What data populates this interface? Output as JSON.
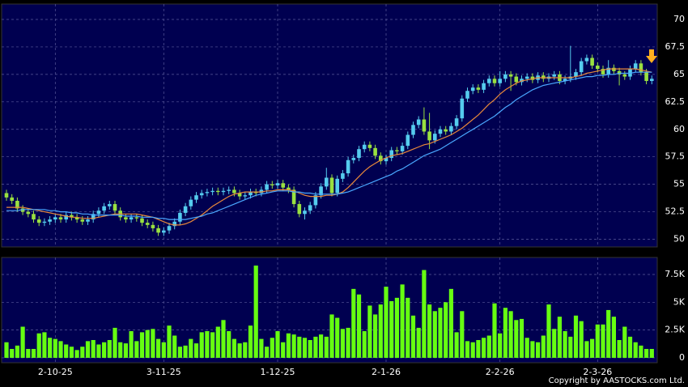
{
  "chart_data": {
    "type": "candlestick",
    "categories": [
      null,
      null,
      null,
      null,
      null,
      null,
      null,
      null,
      null,
      "2-10-25",
      null,
      null,
      null,
      null,
      null,
      null,
      null,
      null,
      null,
      null,
      null,
      null,
      null,
      null,
      null,
      null,
      null,
      null,
      null,
      "3-11-25",
      null,
      null,
      null,
      null,
      null,
      null,
      null,
      null,
      null,
      null,
      null,
      null,
      null,
      null,
      null,
      null,
      null,
      null,
      null,
      null,
      "1-12-25",
      null,
      null,
      null,
      null,
      null,
      null,
      null,
      null,
      null,
      null,
      null,
      null,
      null,
      null,
      null,
      null,
      null,
      null,
      null,
      "2-1-26",
      null,
      null,
      null,
      null,
      null,
      null,
      null,
      null,
      null,
      null,
      null,
      null,
      null,
      null,
      null,
      null,
      null,
      null,
      null,
      null,
      "2-2-26",
      null,
      null,
      null,
      null,
      null,
      null,
      null,
      null,
      null,
      null,
      null,
      null,
      null,
      null,
      null,
      null,
      null,
      "2-3-26",
      null,
      null,
      null,
      null,
      null,
      null,
      null,
      null,
      null,
      null
    ],
    "open": [
      54.2,
      53.8,
      53.5,
      52.8,
      52.5,
      52.3,
      51.8,
      51.5,
      51.6,
      51.8,
      52.0,
      51.8,
      52.2,
      52.0,
      51.8,
      51.6,
      51.8,
      52.3,
      52.6,
      53.0,
      53.2,
      52.6,
      52.0,
      51.8,
      52.0,
      51.9,
      51.5,
      51.3,
      51.0,
      50.6,
      50.8,
      51.2,
      51.6,
      52.4,
      53.0,
      53.6,
      54.0,
      54.2,
      54.3,
      54.4,
      54.3,
      54.4,
      54.5,
      54.2,
      53.9,
      54.0,
      54.3,
      54.2,
      54.5,
      55.0,
      54.9,
      55.1,
      54.7,
      54.5,
      53.2,
      52.3,
      52.6,
      53.1,
      54.0,
      54.8,
      55.6,
      54.2,
      55.5,
      56.0,
      57.2,
      57.4,
      58.2,
      58.6,
      58.3,
      57.6,
      57.1,
      57.4,
      58.1,
      58.0,
      58.5,
      59.5,
      60.4,
      60.9,
      59.8,
      59.0,
      59.6,
      60.0,
      59.8,
      60.3,
      61.0,
      62.8,
      63.5,
      63.8,
      63.6,
      64.2,
      64.6,
      64.2,
      64.6,
      65.0,
      64.8,
      64.3,
      64.6,
      64.8,
      64.5,
      64.9,
      64.6,
      64.8,
      65.0,
      64.4,
      64.6,
      64.8,
      65.2,
      66.2,
      66.5,
      65.8,
      65.5,
      65.0,
      65.6,
      65.3,
      65.0,
      64.8,
      65.5,
      66.0,
      65.2,
      64.4
    ],
    "high": [
      54.5,
      54.1,
      53.8,
      53.1,
      52.8,
      52.6,
      52.1,
      51.9,
      52.1,
      52.3,
      52.3,
      52.5,
      52.5,
      52.3,
      52.1,
      52.1,
      52.6,
      52.9,
      53.3,
      53.5,
      53.5,
      52.9,
      52.3,
      52.3,
      52.3,
      52.2,
      51.8,
      51.6,
      51.3,
      51.1,
      51.5,
      51.9,
      52.7,
      53.3,
      53.9,
      54.3,
      54.5,
      54.6,
      54.7,
      54.7,
      54.7,
      54.8,
      54.8,
      54.5,
      54.3,
      54.6,
      54.6,
      54.8,
      55.3,
      55.3,
      55.4,
      55.4,
      55.0,
      54.8,
      53.5,
      52.9,
      53.4,
      54.3,
      55.1,
      56.5,
      55.9,
      55.8,
      56.3,
      57.5,
      57.7,
      58.5,
      58.9,
      58.9,
      58.6,
      57.9,
      57.7,
      58.4,
      58.4,
      58.8,
      59.8,
      60.7,
      61.2,
      62.0,
      61.5,
      59.9,
      60.3,
      60.3,
      60.6,
      61.3,
      63.1,
      63.8,
      64.1,
      64.1,
      64.5,
      64.9,
      64.9,
      65.3,
      65.3,
      65.3,
      65.1,
      64.9,
      65.1,
      65.1,
      65.2,
      65.2,
      65.1,
      65.3,
      65.3,
      64.9,
      67.6,
      65.5,
      66.5,
      66.8,
      66.8,
      66.1,
      65.8,
      66.3,
      65.9,
      65.6,
      65.3,
      65.8,
      66.3,
      66.3,
      65.5,
      64.9
    ],
    "low": [
      53.5,
      53.2,
      52.5,
      52.2,
      52.0,
      51.5,
      51.2,
      51.2,
      51.3,
      51.5,
      51.5,
      51.5,
      51.7,
      51.5,
      51.3,
      51.3,
      51.5,
      52.0,
      52.3,
      52.7,
      52.3,
      51.7,
      51.5,
      51.5,
      51.6,
      51.2,
      51.0,
      50.7,
      50.3,
      50.3,
      50.5,
      50.9,
      51.3,
      52.1,
      52.7,
      53.3,
      53.7,
      53.9,
      54.0,
      54.0,
      54.0,
      54.1,
      53.9,
      53.6,
      53.6,
      53.7,
      53.9,
      53.9,
      54.2,
      54.6,
      54.6,
      54.4,
      54.2,
      52.9,
      52.0,
      51.8,
      52.3,
      52.8,
      53.7,
      54.5,
      53.9,
      53.9,
      55.2,
      55.7,
      56.9,
      57.1,
      57.9,
      58.0,
      57.3,
      56.8,
      56.8,
      57.1,
      57.7,
      57.7,
      58.2,
      59.2,
      60.1,
      59.5,
      58.2,
      58.7,
      59.3,
      59.5,
      59.5,
      60.0,
      60.7,
      62.5,
      63.2,
      63.3,
      63.3,
      63.9,
      63.9,
      63.9,
      64.3,
      63.5,
      64.0,
      64.0,
      64.3,
      64.2,
      64.2,
      64.3,
      64.3,
      64.5,
      64.1,
      64.1,
      64.3,
      64.5,
      64.9,
      65.9,
      65.5,
      65.2,
      64.7,
      64.7,
      65.0,
      64.0,
      64.5,
      64.5,
      65.2,
      64.9,
      64.1,
      64.1
    ],
    "close": [
      53.8,
      53.5,
      52.8,
      52.5,
      52.3,
      51.8,
      51.5,
      51.6,
      51.8,
      52.0,
      51.8,
      52.2,
      52.0,
      51.8,
      51.6,
      51.8,
      52.3,
      52.6,
      53.0,
      53.2,
      52.6,
      52.0,
      51.8,
      52.0,
      51.9,
      51.5,
      51.3,
      51.0,
      50.6,
      50.8,
      51.2,
      51.6,
      52.4,
      53.0,
      53.6,
      54.0,
      54.2,
      54.3,
      54.4,
      54.3,
      54.4,
      54.5,
      54.2,
      53.9,
      54.0,
      54.3,
      54.2,
      54.5,
      55.0,
      54.9,
      55.1,
      54.7,
      54.5,
      53.2,
      52.3,
      52.6,
      53.1,
      54.0,
      54.8,
      55.6,
      54.2,
      55.5,
      56.0,
      57.2,
      57.4,
      58.2,
      58.6,
      58.3,
      57.6,
      57.1,
      57.4,
      58.1,
      58.0,
      58.5,
      59.5,
      60.4,
      60.9,
      59.8,
      59.0,
      59.6,
      60.0,
      59.8,
      60.3,
      61.0,
      62.8,
      63.5,
      63.8,
      63.6,
      64.2,
      64.6,
      64.2,
      64.6,
      65.0,
      64.8,
      64.3,
      64.6,
      64.8,
      64.5,
      64.9,
      64.6,
      64.8,
      65.0,
      64.4,
      64.6,
      64.8,
      65.2,
      66.2,
      66.5,
      65.8,
      65.5,
      65.0,
      65.6,
      65.3,
      65.0,
      64.8,
      65.5,
      66.0,
      65.2,
      64.4,
      64.6
    ],
    "up_color": "#55ccee",
    "down_color": "#99e040",
    "ma_lines": [
      {
        "color": "#e8883a",
        "values": [
          52.9,
          52.9,
          52.9,
          52.9,
          52.8,
          52.7,
          52.6,
          52.5,
          52.4,
          52.3,
          52.2,
          52.1,
          52.0,
          52.0,
          51.9,
          51.9,
          51.9,
          52.0,
          52.1,
          52.2,
          52.3,
          52.3,
          52.3,
          52.3,
          52.3,
          52.2,
          52.1,
          52.0,
          51.8,
          51.6,
          51.4,
          51.3,
          51.3,
          51.4,
          51.6,
          51.9,
          52.2,
          52.6,
          53.0,
          53.3,
          53.6,
          53.9,
          54.1,
          54.2,
          54.3,
          54.3,
          54.3,
          54.3,
          54.4,
          54.4,
          54.5,
          54.5,
          54.5,
          54.4,
          54.2,
          54.0,
          53.9,
          53.9,
          53.9,
          54.0,
          54.0,
          54.1,
          54.3,
          54.7,
          55.2,
          55.7,
          56.2,
          56.6,
          56.9,
          57.2,
          57.4,
          57.6,
          57.7,
          57.8,
          58.0,
          58.2,
          58.4,
          58.6,
          58.7,
          58.9,
          59.1,
          59.3,
          59.5,
          59.8,
          60.1,
          60.5,
          60.9,
          61.3,
          61.8,
          62.3,
          62.7,
          63.2,
          63.6,
          63.9,
          64.2,
          64.4,
          64.5,
          64.6,
          64.7,
          64.7,
          64.7,
          64.7,
          64.7,
          64.7,
          64.7,
          64.8,
          64.9,
          65.1,
          65.2,
          65.3,
          65.4,
          65.5,
          65.5,
          65.5,
          65.5,
          65.5,
          65.5,
          65.4,
          65.3,
          65.2
        ]
      },
      {
        "color": "#4aa8ff",
        "values": [
          52.6,
          52.6,
          52.6,
          52.7,
          52.7,
          52.7,
          52.7,
          52.7,
          52.6,
          52.6,
          52.5,
          52.5,
          52.4,
          52.4,
          52.3,
          52.3,
          52.2,
          52.2,
          52.2,
          52.2,
          52.2,
          52.2,
          52.1,
          52.1,
          52.1,
          52.0,
          52.0,
          52.0,
          51.9,
          51.9,
          51.8,
          51.8,
          51.8,
          51.8,
          51.9,
          52.0,
          52.1,
          52.3,
          52.4,
          52.6,
          52.8,
          53.0,
          53.2,
          53.4,
          53.6,
          53.8,
          54.0,
          54.1,
          54.2,
          54.3,
          54.4,
          54.4,
          54.4,
          54.3,
          54.3,
          54.2,
          54.2,
          54.1,
          54.1,
          54.1,
          54.1,
          54.1,
          54.2,
          54.3,
          54.5,
          54.7,
          54.9,
          55.1,
          55.3,
          55.5,
          55.7,
          55.9,
          56.2,
          56.4,
          56.7,
          57.0,
          57.3,
          57.6,
          57.8,
          58.0,
          58.2,
          58.5,
          58.8,
          59.1,
          59.4,
          59.7,
          60.0,
          60.3,
          60.6,
          60.9,
          61.2,
          61.6,
          62.0,
          62.3,
          62.7,
          63.0,
          63.3,
          63.6,
          63.8,
          64.0,
          64.1,
          64.2,
          64.3,
          64.4,
          64.5,
          64.6,
          64.7,
          64.8,
          64.8,
          64.9,
          64.9,
          65.0,
          65.0,
          65.1,
          65.1,
          65.1,
          65.2,
          65.2,
          65.2,
          65.2
        ]
      }
    ],
    "ylim": [
      49.3,
      71.4
    ],
    "yticks": [
      50,
      52.5,
      55,
      57.5,
      60,
      62.5,
      65,
      67.5,
      70
    ],
    "volume": {
      "color": "#66ff11",
      "values": [
        1.4,
        0.8,
        1.1,
        2.8,
        0.8,
        0.8,
        2.2,
        2.3,
        1.8,
        1.7,
        1.5,
        1.2,
        1.0,
        0.7,
        1.0,
        1.5,
        1.6,
        1.2,
        1.4,
        1.6,
        2.7,
        1.4,
        1.3,
        2.4,
        1.5,
        2.3,
        2.5,
        2.6,
        1.7,
        1.4,
        2.9,
        2.0,
        1.0,
        1.1,
        1.7,
        1.3,
        2.3,
        2.4,
        2.3,
        2.8,
        3.4,
        2.4,
        1.7,
        1.3,
        1.4,
        2.9,
        8.3,
        1.7,
        1.0,
        1.8,
        2.4,
        1.4,
        2.2,
        2.1,
        1.9,
        1.8,
        1.6,
        1.9,
        2.1,
        1.9,
        3.9,
        3.6,
        2.6,
        2.7,
        6.2,
        5.7,
        2.4,
        4.7,
        3.9,
        4.8,
        6.4,
        5.1,
        5.4,
        6.6,
        5.4,
        3.8,
        2.7,
        7.9,
        4.8,
        4.2,
        4.5,
        5.0,
        6.2,
        2.3,
        4.2,
        1.5,
        1.4,
        1.6,
        1.8,
        2.0,
        4.9,
        2.2,
        4.5,
        4.2,
        3.4,
        3.5,
        1.8,
        1.5,
        1.4,
        2.0,
        4.8,
        2.6,
        3.7,
        2.4,
        1.9,
        3.8,
        3.3,
        1.5,
        1.7,
        3.0,
        3.0,
        4.3,
        3.7,
        1.6,
        2.8,
        1.9,
        1.4,
        1.1,
        0.8,
        0.8
      ],
      "ylim": [
        -0.44,
        9.03
      ],
      "yticks": [
        0,
        {
          "value": 2.5,
          "label": "2.5K"
        },
        {
          "value": 5,
          "label": "5K"
        },
        {
          "value": 7.5,
          "label": "7.5K"
        }
      ]
    },
    "grid": true,
    "copyright": "Copyright by AASTOCKS.com Ltd."
  }
}
